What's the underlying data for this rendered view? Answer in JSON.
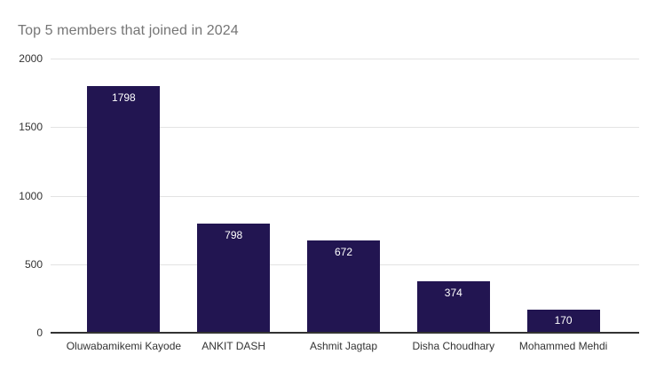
{
  "chart_data": {
    "type": "bar",
    "title": "Top 5 members that joined in 2024",
    "categories": [
      "Oluwabamikemi Kayode",
      "ANKIT DASH",
      "Ashmit Jagtap",
      "Disha Choudhary",
      "Mohammed Mehdi"
    ],
    "values": [
      1798,
      798,
      672,
      374,
      170
    ],
    "value_labels": [
      "1798",
      "798",
      "672",
      "374",
      "170"
    ],
    "xlabel": "",
    "ylabel": "",
    "ylim": [
      0,
      2000
    ],
    "yticks": [
      0,
      500,
      1000,
      1500,
      2000
    ],
    "ytick_labels": [
      "0",
      "500",
      "1000",
      "1500",
      "2000"
    ],
    "grid": true,
    "legend_position": "none",
    "bar_value_labels_inside": true
  },
  "colors": {
    "bar": "#221551",
    "grid": "#e3e3e3",
    "axis": "#333333",
    "tick_label": "#333333",
    "value_label": "#ffffff",
    "title": "#757575",
    "background": "#ffffff"
  }
}
